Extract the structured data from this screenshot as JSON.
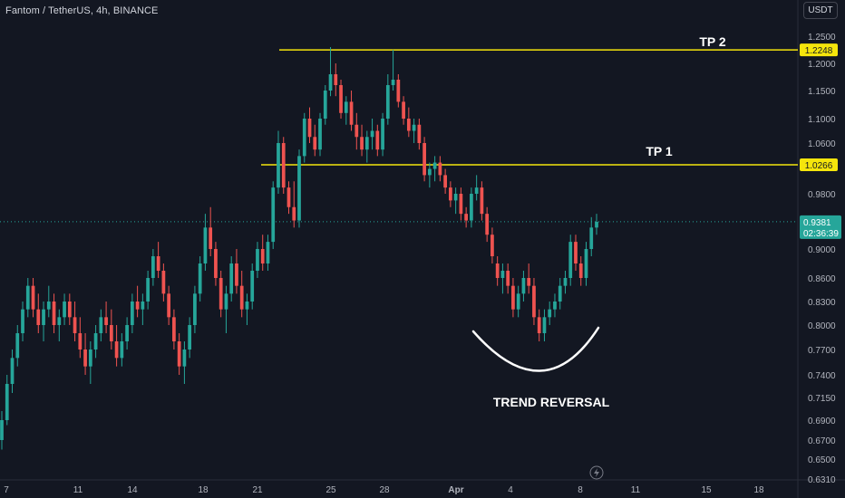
{
  "header": {
    "symbol_info": "Fantom / TetherUS, 4h, BINANCE",
    "currency_button": "USDT"
  },
  "colors": {
    "background": "#131722",
    "bull": "#26a69a",
    "bear": "#ef5350",
    "level_line": "#f5e50c",
    "last_price_bg": "#26a69a",
    "label_text": "#ffffff"
  },
  "chart_data": {
    "type": "candlestick",
    "price_axis_ticks": [
      "1.2500",
      "1.2000",
      "1.1500",
      "1.1000",
      "1.0600",
      "1.0266",
      "0.9800",
      "0.9381",
      "0.9000",
      "0.8600",
      "0.8300",
      "0.8000",
      "0.7700",
      "0.7400",
      "0.7150",
      "0.6900",
      "0.6700",
      "0.6500",
      "0.6310"
    ],
    "date_axis_ticks": [
      "7",
      "11",
      "14",
      "18",
      "21",
      "25",
      "28",
      "Apr",
      "4",
      "8",
      "11",
      "15",
      "18"
    ],
    "levels": [
      {
        "name": "TP 2",
        "price": 1.2248,
        "label": "1.2248"
      },
      {
        "name": "TP 1",
        "price": 1.0266,
        "label": "1.0266"
      }
    ],
    "last_price": {
      "value": "0.9381",
      "countdown": "02:36:39"
    },
    "annotations": {
      "tp2": "TP 2",
      "tp1": "TP 1",
      "pattern": "TREND REVERSAL"
    },
    "candles": [
      [
        0.67,
        0.7,
        0.66,
        0.69
      ],
      [
        0.69,
        0.74,
        0.685,
        0.73
      ],
      [
        0.73,
        0.77,
        0.72,
        0.76
      ],
      [
        0.76,
        0.8,
        0.75,
        0.79
      ],
      [
        0.79,
        0.83,
        0.78,
        0.82
      ],
      [
        0.82,
        0.86,
        0.81,
        0.85
      ],
      [
        0.85,
        0.86,
        0.81,
        0.82
      ],
      [
        0.82,
        0.84,
        0.79,
        0.8
      ],
      [
        0.8,
        0.83,
        0.78,
        0.82
      ],
      [
        0.82,
        0.85,
        0.81,
        0.83
      ],
      [
        0.83,
        0.84,
        0.79,
        0.8
      ],
      [
        0.8,
        0.82,
        0.78,
        0.81
      ],
      [
        0.81,
        0.84,
        0.8,
        0.83
      ],
      [
        0.83,
        0.84,
        0.8,
        0.81
      ],
      [
        0.81,
        0.83,
        0.78,
        0.79
      ],
      [
        0.79,
        0.81,
        0.76,
        0.77
      ],
      [
        0.77,
        0.79,
        0.74,
        0.75
      ],
      [
        0.75,
        0.78,
        0.73,
        0.77
      ],
      [
        0.77,
        0.8,
        0.76,
        0.79
      ],
      [
        0.79,
        0.82,
        0.78,
        0.81
      ],
      [
        0.81,
        0.83,
        0.79,
        0.8
      ],
      [
        0.8,
        0.82,
        0.77,
        0.78
      ],
      [
        0.78,
        0.8,
        0.75,
        0.76
      ],
      [
        0.76,
        0.79,
        0.75,
        0.78
      ],
      [
        0.78,
        0.81,
        0.77,
        0.8
      ],
      [
        0.8,
        0.84,
        0.79,
        0.83
      ],
      [
        0.83,
        0.85,
        0.81,
        0.82
      ],
      [
        0.82,
        0.84,
        0.8,
        0.83
      ],
      [
        0.83,
        0.87,
        0.82,
        0.86
      ],
      [
        0.86,
        0.9,
        0.85,
        0.89
      ],
      [
        0.89,
        0.91,
        0.86,
        0.87
      ],
      [
        0.87,
        0.88,
        0.83,
        0.84
      ],
      [
        0.84,
        0.85,
        0.8,
        0.81
      ],
      [
        0.81,
        0.82,
        0.77,
        0.78
      ],
      [
        0.78,
        0.79,
        0.74,
        0.75
      ],
      [
        0.75,
        0.78,
        0.73,
        0.77
      ],
      [
        0.77,
        0.81,
        0.76,
        0.8
      ],
      [
        0.8,
        0.85,
        0.79,
        0.84
      ],
      [
        0.84,
        0.89,
        0.83,
        0.88
      ],
      [
        0.88,
        0.95,
        0.87,
        0.93
      ],
      [
        0.93,
        0.96,
        0.89,
        0.9
      ],
      [
        0.9,
        0.91,
        0.85,
        0.86
      ],
      [
        0.86,
        0.87,
        0.81,
        0.82
      ],
      [
        0.82,
        0.85,
        0.79,
        0.84
      ],
      [
        0.84,
        0.89,
        0.83,
        0.88
      ],
      [
        0.88,
        0.9,
        0.84,
        0.85
      ],
      [
        0.85,
        0.87,
        0.81,
        0.82
      ],
      [
        0.82,
        0.84,
        0.8,
        0.83
      ],
      [
        0.83,
        0.88,
        0.82,
        0.87
      ],
      [
        0.87,
        0.91,
        0.86,
        0.9
      ],
      [
        0.9,
        0.92,
        0.87,
        0.88
      ],
      [
        0.88,
        0.92,
        0.87,
        0.91
      ],
      [
        0.91,
        1.0,
        0.9,
        0.99
      ],
      [
        0.99,
        1.08,
        0.98,
        1.06
      ],
      [
        1.06,
        1.07,
        0.98,
        0.99
      ],
      [
        0.99,
        1.0,
        0.95,
        0.96
      ],
      [
        0.96,
        1.0,
        0.93,
        0.94
      ],
      [
        0.94,
        1.05,
        0.93,
        1.04
      ],
      [
        1.04,
        1.11,
        1.03,
        1.1
      ],
      [
        1.1,
        1.12,
        1.06,
        1.07
      ],
      [
        1.07,
        1.09,
        1.04,
        1.05
      ],
      [
        1.05,
        1.11,
        1.04,
        1.1
      ],
      [
        1.1,
        1.16,
        1.09,
        1.15
      ],
      [
        1.15,
        1.23,
        1.14,
        1.18
      ],
      [
        1.18,
        1.2,
        1.14,
        1.16
      ],
      [
        1.16,
        1.17,
        1.1,
        1.11
      ],
      [
        1.11,
        1.14,
        1.09,
        1.13
      ],
      [
        1.13,
        1.15,
        1.08,
        1.09
      ],
      [
        1.09,
        1.11,
        1.05,
        1.07
      ],
      [
        1.07,
        1.09,
        1.04,
        1.05
      ],
      [
        1.05,
        1.08,
        1.03,
        1.07
      ],
      [
        1.07,
        1.1,
        1.05,
        1.08
      ],
      [
        1.08,
        1.09,
        1.04,
        1.05
      ],
      [
        1.05,
        1.11,
        1.04,
        1.1
      ],
      [
        1.1,
        1.18,
        1.09,
        1.16
      ],
      [
        1.16,
        1.225,
        1.15,
        1.17
      ],
      [
        1.17,
        1.18,
        1.12,
        1.13
      ],
      [
        1.13,
        1.14,
        1.09,
        1.1
      ],
      [
        1.1,
        1.12,
        1.07,
        1.08
      ],
      [
        1.08,
        1.1,
        1.06,
        1.09
      ],
      [
        1.09,
        1.1,
        1.05,
        1.06
      ],
      [
        1.06,
        1.07,
        1.0,
        1.01
      ],
      [
        1.01,
        1.03,
        0.99,
        1.02
      ],
      [
        1.02,
        1.04,
        1.0,
        1.03
      ],
      [
        1.03,
        1.04,
        1.0,
        1.01
      ],
      [
        1.01,
        1.02,
        0.98,
        0.99
      ],
      [
        0.99,
        1.0,
        0.96,
        0.97
      ],
      [
        0.97,
        0.99,
        0.95,
        0.98
      ],
      [
        0.98,
        0.99,
        0.94,
        0.95
      ],
      [
        0.95,
        0.96,
        0.93,
        0.94
      ],
      [
        0.94,
        0.99,
        0.93,
        0.98
      ],
      [
        0.98,
        1.01,
        0.97,
        0.99
      ],
      [
        0.99,
        1.0,
        0.94,
        0.95
      ],
      [
        0.95,
        0.96,
        0.91,
        0.92
      ],
      [
        0.92,
        0.93,
        0.88,
        0.89
      ],
      [
        0.88,
        0.89,
        0.85,
        0.86
      ],
      [
        0.86,
        0.88,
        0.84,
        0.87
      ],
      [
        0.87,
        0.88,
        0.84,
        0.85
      ],
      [
        0.85,
        0.86,
        0.81,
        0.82
      ],
      [
        0.82,
        0.85,
        0.81,
        0.84
      ],
      [
        0.84,
        0.87,
        0.83,
        0.86
      ],
      [
        0.86,
        0.88,
        0.84,
        0.85
      ],
      [
        0.85,
        0.86,
        0.8,
        0.81
      ],
      [
        0.81,
        0.82,
        0.78,
        0.79
      ],
      [
        0.79,
        0.82,
        0.78,
        0.81
      ],
      [
        0.81,
        0.83,
        0.8,
        0.82
      ],
      [
        0.82,
        0.84,
        0.81,
        0.83
      ],
      [
        0.83,
        0.86,
        0.82,
        0.85
      ],
      [
        0.85,
        0.87,
        0.84,
        0.86
      ],
      [
        0.86,
        0.92,
        0.85,
        0.91
      ],
      [
        0.91,
        0.92,
        0.87,
        0.88
      ],
      [
        0.88,
        0.89,
        0.85,
        0.86
      ],
      [
        0.86,
        0.91,
        0.85,
        0.9
      ],
      [
        0.9,
        0.945,
        0.89,
        0.93
      ],
      [
        0.93,
        0.95,
        0.92,
        0.938
      ]
    ]
  }
}
